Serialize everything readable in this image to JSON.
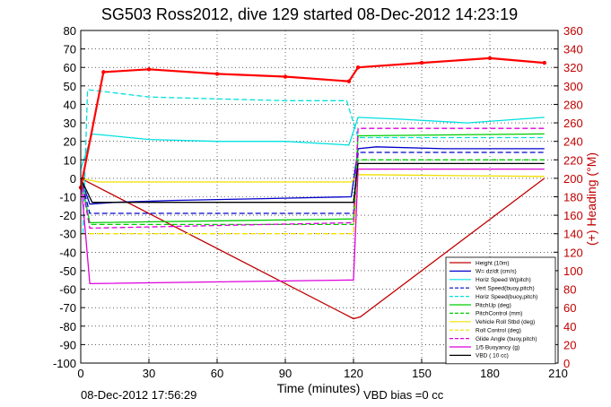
{
  "chart_data": {
    "type": "line",
    "title": "SG503 Ross2012, dive 129 started 08-Dec-2012 14:23:19",
    "xlabel": "Time (minutes)",
    "ylabel": "",
    "y2label": "(+) Heading (°M)",
    "xlim": [
      0,
      210
    ],
    "ylim": [
      -100,
      80
    ],
    "y2lim": [
      0,
      360
    ],
    "x_ticks": [
      0,
      30,
      60,
      90,
      120,
      150,
      180,
      210
    ],
    "y_ticks": [
      -100,
      -90,
      -80,
      -70,
      -60,
      -50,
      -40,
      -30,
      -20,
      -10,
      0,
      10,
      20,
      30,
      40,
      50,
      60,
      70,
      80
    ],
    "y2_ticks": [
      0,
      20,
      40,
      60,
      80,
      100,
      120,
      140,
      160,
      180,
      200,
      220,
      240,
      260,
      280,
      300,
      320,
      340,
      360
    ],
    "grid": true,
    "legend_position": "bottom-right",
    "footer_left": "08-Dec-2012 17:56:29",
    "footer_right": "VBD bias =0 cc",
    "series": [
      {
        "name": "Height (10m)",
        "color": "#c00000",
        "style": "solid",
        "x": [
          0,
          120,
          123,
          204
        ],
        "y": [
          0,
          -76,
          -75,
          0
        ]
      },
      {
        "name": "W= dz/dt (cm/s)",
        "color": "#0000cc",
        "style": "solid",
        "x": [
          0,
          4,
          15,
          40,
          80,
          119,
          122,
          130,
          160,
          204
        ],
        "y": [
          0,
          -14,
          -13,
          -12,
          -11,
          -10,
          16,
          17,
          16,
          16
        ]
      },
      {
        "name": "Horiz Speed W(pitch)",
        "color": "#00e0e0",
        "style": "solid",
        "x": [
          0,
          5,
          30,
          60,
          90,
          118,
          122,
          140,
          170,
          204
        ],
        "y": [
          5,
          24,
          21,
          20,
          20,
          18,
          33,
          32,
          30,
          33
        ]
      },
      {
        "name": "Vert Speed(buoy,pitch)",
        "color": "#0000cc",
        "style": "dashed",
        "x": [
          0,
          4,
          120,
          122,
          204
        ],
        "y": [
          0,
          -19,
          -19,
          14,
          14
        ]
      },
      {
        "name": "Horiz Speed(buoy,pitch)",
        "color": "#00e0e0",
        "style": "dashed",
        "x": [
          1,
          3,
          30,
          60,
          90,
          117,
          122,
          204
        ],
        "y": [
          -30,
          48,
          44,
          43,
          42,
          42,
          22,
          22
        ]
      },
      {
        "name": "PitchUp (deg)",
        "color": "#00cc00",
        "style": "solid",
        "x": [
          0,
          4,
          120,
          122,
          204
        ],
        "y": [
          0,
          -24,
          -22,
          23,
          24
        ]
      },
      {
        "name": "PitchControl (mm)",
        "color": "#00cc00",
        "style": "dashed",
        "x": [
          0,
          4,
          120,
          122,
          204
        ],
        "y": [
          0,
          -25,
          -25,
          10,
          10
        ]
      },
      {
        "name": "Vehicle Roll Stbd (deg)",
        "color": "#f0e000",
        "style": "solid",
        "x": [
          0,
          8,
          50,
          100,
          119,
          122,
          204
        ],
        "y": [
          0,
          -2,
          -2,
          -2,
          -2,
          2,
          1
        ]
      },
      {
        "name": "Roll Control (deg)",
        "color": "#f0e000",
        "style": "dashed",
        "x": [
          0,
          120,
          122,
          204
        ],
        "y": [
          -30,
          -30,
          5,
          5
        ]
      },
      {
        "name": "Glide Angle (buoy,pitch)",
        "color": "#dd00dd",
        "style": "dashed",
        "x": [
          0,
          4,
          120,
          122,
          204
        ],
        "y": [
          0,
          -27,
          -24,
          27,
          27
        ]
      },
      {
        "name": "1/5 Buoyancy (g)",
        "color": "#dd00dd",
        "style": "solid",
        "x": [
          0,
          4,
          120,
          122,
          204
        ],
        "y": [
          0,
          -57,
          -55,
          5,
          5
        ]
      },
      {
        "name": "VBD ( 10 cc)",
        "color": "#000000",
        "style": "solid",
        "x": [
          0,
          5,
          120,
          122,
          204
        ],
        "y": [
          0,
          -13,
          -13,
          8,
          8
        ]
      },
      {
        "name": "(+) Heading (°M)",
        "color": "#ff0000",
        "axis": "right",
        "style": "marker",
        "x": [
          0,
          10,
          30,
          60,
          90,
          118,
          122,
          150,
          180,
          204
        ],
        "y": [
          190,
          315,
          318,
          313,
          310,
          305,
          320,
          325,
          330,
          325
        ]
      }
    ]
  }
}
